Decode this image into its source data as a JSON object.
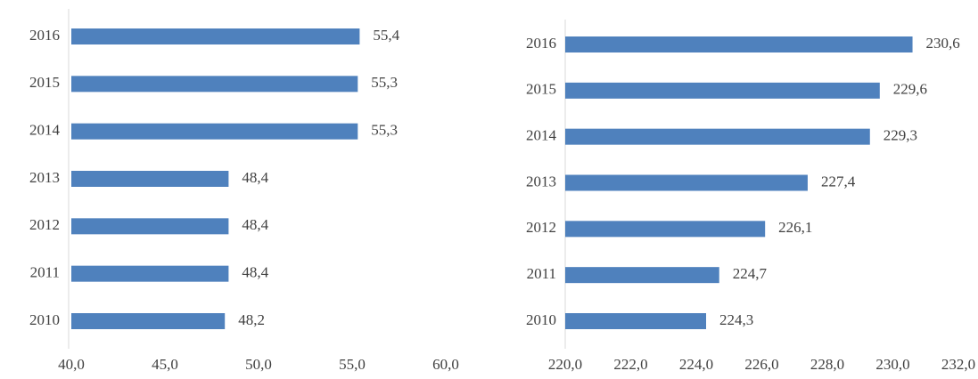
{
  "chart_data": [
    {
      "type": "bar",
      "orientation": "horizontal",
      "categories": [
        "2010",
        "2011",
        "2012",
        "2013",
        "2014",
        "2015",
        "2016"
      ],
      "values": [
        48.2,
        48.4,
        48.4,
        48.4,
        55.3,
        55.3,
        55.4
      ],
      "value_labels": [
        "48,2",
        "48,4",
        "48,4",
        "48,4",
        "55,3",
        "55,3",
        "55,4"
      ],
      "color": "#4f81bd",
      "xlim": [
        40,
        60
      ],
      "xticks": [
        {
          "value": 40,
          "label": "40,0"
        },
        {
          "value": 45,
          "label": "45,0"
        },
        {
          "value": 50,
          "label": "50,0"
        },
        {
          "value": 55,
          "label": "55,0"
        },
        {
          "value": 60,
          "label": "60,0"
        }
      ]
    },
    {
      "type": "bar",
      "orientation": "horizontal",
      "categories": [
        "2010",
        "2011",
        "2012",
        "2013",
        "2014",
        "2015",
        "2016"
      ],
      "values": [
        224.3,
        224.7,
        226.1,
        227.4,
        229.3,
        229.6,
        230.6
      ],
      "value_labels": [
        "224,3",
        "224,7",
        "226,1",
        "227,4",
        "229,3",
        "229,6",
        "230,6"
      ],
      "color": "#4f81bd",
      "xlim": [
        220,
        232
      ],
      "xticks": [
        {
          "value": 220,
          "label": "220,0"
        },
        {
          "value": 222,
          "label": "222,0"
        },
        {
          "value": 224,
          "label": "224,0"
        },
        {
          "value": 226,
          "label": "226,0"
        },
        {
          "value": 228,
          "label": "228,0"
        },
        {
          "value": 230,
          "label": "230,0"
        },
        {
          "value": 232,
          "label": "232,0"
        }
      ]
    }
  ]
}
